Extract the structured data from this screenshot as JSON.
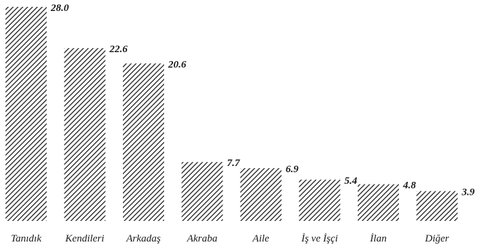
{
  "chart_data": {
    "type": "bar",
    "title": "",
    "xlabel": "",
    "ylabel": "",
    "categories": [
      "Tanıdık",
      "Kendileri",
      "Arkadaş",
      "Akraba",
      "Aile",
      "İş ve İşçi",
      "İlan",
      "Diğer"
    ],
    "values": [
      28.0,
      22.6,
      20.6,
      7.7,
      6.9,
      5.4,
      4.8,
      3.9
    ],
    "value_labels": [
      "28.0",
      "22.6",
      "20.6",
      "7.7",
      "6.9",
      "5.4",
      "4.8",
      "3.9"
    ],
    "ylim": [
      0,
      28.0
    ],
    "grid": false,
    "bar_fill": "diagonal-hatch",
    "bar_color": "#1a1a1a",
    "background": "#ffffff"
  }
}
